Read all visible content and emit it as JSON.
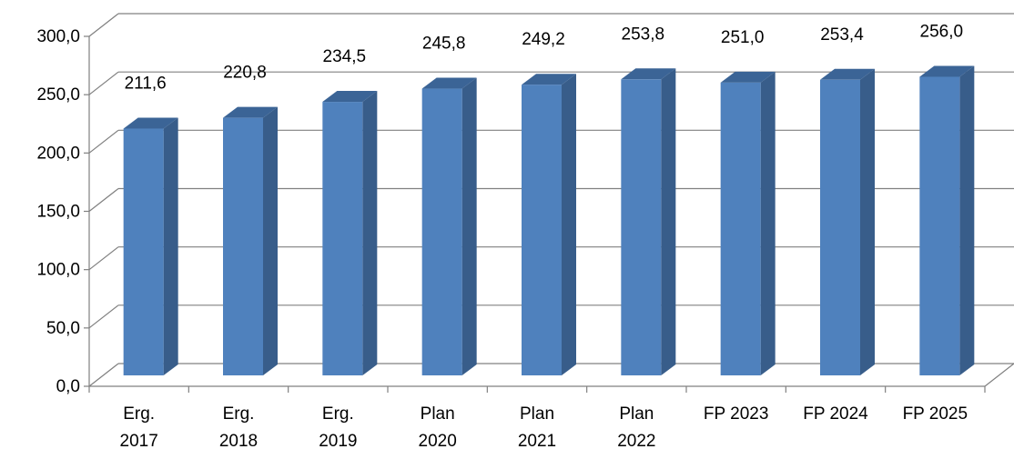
{
  "chart_data": {
    "type": "bar",
    "style": "3d-column",
    "categories": [
      [
        "Erg.",
        "2017"
      ],
      [
        "Erg.",
        "2018"
      ],
      [
        "Erg.",
        "2019"
      ],
      [
        "Plan",
        "2020"
      ],
      [
        "Plan",
        "2021"
      ],
      [
        "Plan",
        "2022"
      ],
      [
        "FP 2023"
      ],
      [
        "FP 2024"
      ],
      [
        "FP 2025"
      ]
    ],
    "values": [
      211.6,
      220.8,
      234.5,
      245.8,
      249.2,
      253.8,
      251.0,
      253.4,
      256.0
    ],
    "value_labels": [
      "211,6",
      "220,8",
      "234,5",
      "245,8",
      "249,2",
      "253,8",
      "251,0",
      "253,4",
      "256,0"
    ],
    "y_ticks": [
      0,
      50,
      100,
      150,
      200,
      250,
      300
    ],
    "y_tick_labels": [
      "0,0",
      "50,0",
      "100,0",
      "150,0",
      "200,0",
      "250,0",
      "300,0"
    ],
    "ylim": [
      0,
      300
    ],
    "grid": true,
    "legend": "none",
    "colors": {
      "bar_front": "#4F81BD",
      "bar_side": "#385D8A",
      "bar_top": "#3B6496",
      "grid": "#808080"
    }
  }
}
